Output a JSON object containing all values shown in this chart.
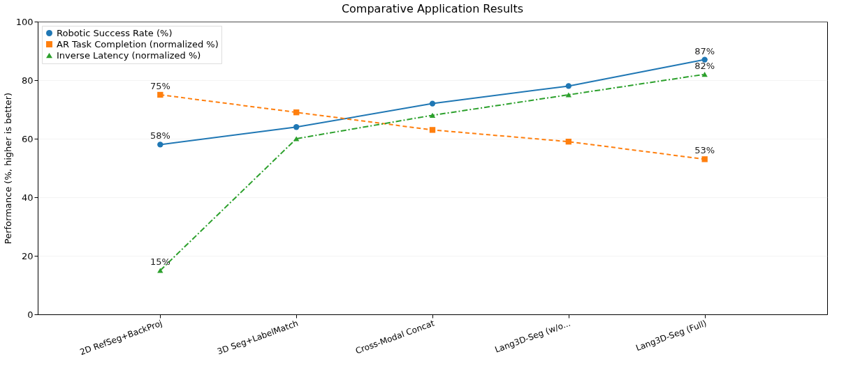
{
  "chart_data": {
    "type": "line",
    "title": "Comparative Application Results",
    "ylabel": "Performance (%, higher is better)",
    "categories": [
      "2D RefSeg+BackProj",
      "3D Seg+LabelMatch",
      "Cross-Modal Concat",
      "Lang3D-Seg (w/o...",
      "Lang3D-Seg (Full)"
    ],
    "series": [
      {
        "name": "Robotic Success Rate (%)",
        "color": "#1f77b4",
        "values": [
          58,
          64,
          72,
          78,
          87
        ],
        "marker": "circle",
        "line_style": "solid",
        "value_labels": [
          "58%",
          null,
          null,
          null,
          "87%"
        ]
      },
      {
        "name": "AR Task Completion (normalized %)",
        "color": "#ff7f0e",
        "values": [
          75,
          69,
          63,
          59,
          53
        ],
        "marker": "square",
        "line_style": "dashed",
        "value_labels": [
          "75%",
          null,
          null,
          null,
          "53%"
        ]
      },
      {
        "name": "Inverse Latency (normalized %)",
        "color": "#2ca02c",
        "values": [
          15,
          60,
          68,
          75,
          82
        ],
        "marker": "triangle",
        "line_style": "dashdot",
        "value_labels": [
          "15%",
          null,
          null,
          null,
          "82%"
        ]
      }
    ],
    "ylim": [
      0,
      100
    ],
    "yticks": [
      0,
      20,
      40,
      60,
      80,
      100
    ],
    "grid": "y",
    "legend": "top left"
  }
}
